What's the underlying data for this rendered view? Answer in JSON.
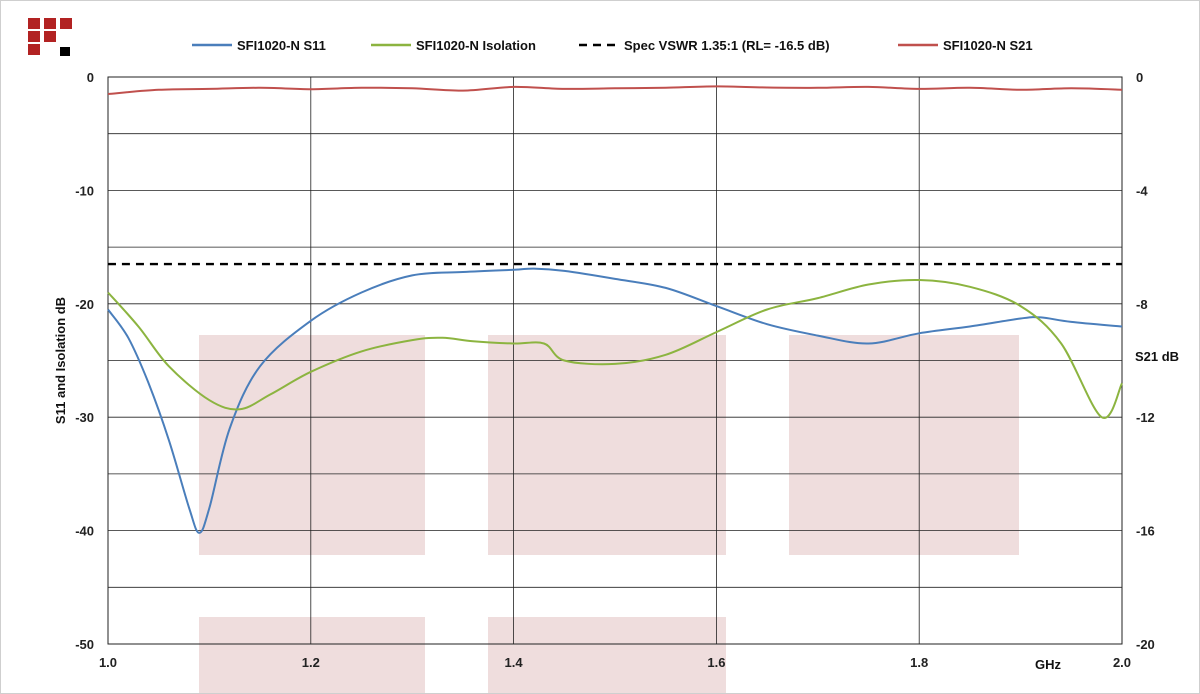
{
  "colors": {
    "s11": "#4a7ebb",
    "isolation": "#8cb440",
    "spec": "#000000",
    "s21": "#c0504d",
    "logo_red": "#b22222",
    "logo_black": "#000000",
    "watermark": "#e8cfcf",
    "grid": "#222222"
  },
  "chart_data": {
    "type": "line",
    "x_unit_label": "GHz",
    "xlim": [
      1.0,
      2.0
    ],
    "x_ticks": [
      "1.0",
      "1.2",
      "1.4",
      "1.6",
      "1.8",
      "2.0"
    ],
    "ylim_left": [
      -50,
      0
    ],
    "y_ticks_left": [
      "0",
      "-10",
      "-20",
      "-30",
      "-40",
      "-50"
    ],
    "ylim_right": [
      -20,
      0
    ],
    "y_ticks_right": [
      "0",
      "-4",
      "-8",
      "-12",
      "-16",
      "-20"
    ],
    "ylabel_left": "S11 and Isolation dB",
    "ylabel_right": "S21 dB",
    "grid": true,
    "legend_position": "top",
    "series": [
      {
        "name": "SFI1020-N S11",
        "axis": "left",
        "style": "solid",
        "x": [
          1.0,
          1.02,
          1.04,
          1.06,
          1.08,
          1.09,
          1.1,
          1.12,
          1.15,
          1.2,
          1.25,
          1.3,
          1.35,
          1.4,
          1.42,
          1.45,
          1.5,
          1.55,
          1.6,
          1.65,
          1.7,
          1.75,
          1.8,
          1.85,
          1.9,
          1.92,
          1.95,
          2.0
        ],
        "values": [
          -20.5,
          -23,
          -27,
          -32,
          -38,
          -40.2,
          -38,
          -31,
          -25.5,
          -21.5,
          -19,
          -17.5,
          -17.2,
          -17.0,
          -16.9,
          -17.1,
          -17.8,
          -18.6,
          -20.2,
          -21.8,
          -22.8,
          -23.5,
          -22.6,
          -22.0,
          -21.3,
          -21.2,
          -21.6,
          -22.0
        ]
      },
      {
        "name": "SFI1020-N Isolation",
        "axis": "left",
        "style": "solid",
        "x": [
          1.0,
          1.03,
          1.06,
          1.1,
          1.13,
          1.16,
          1.2,
          1.25,
          1.3,
          1.33,
          1.36,
          1.4,
          1.43,
          1.45,
          1.5,
          1.55,
          1.6,
          1.65,
          1.7,
          1.75,
          1.8,
          1.85,
          1.9,
          1.94,
          1.98,
          2.0
        ],
        "values": [
          -19.0,
          -22,
          -25.5,
          -28.5,
          -29.3,
          -28,
          -26,
          -24.2,
          -23.2,
          -23.0,
          -23.3,
          -23.5,
          -23.5,
          -25.0,
          -25.3,
          -24.5,
          -22.5,
          -20.5,
          -19.5,
          -18.3,
          -17.9,
          -18.5,
          -20.2,
          -23.5,
          -30.0,
          -27.0
        ]
      },
      {
        "name": "Spec VSWR 1.35:1 (RL= -16.5 dB)",
        "axis": "left",
        "style": "dashed",
        "x": [
          1.0,
          2.0
        ],
        "values": [
          -16.5,
          -16.5
        ]
      },
      {
        "name": "SFI1020-N S21",
        "axis": "right",
        "style": "solid",
        "x": [
          1.0,
          1.05,
          1.1,
          1.15,
          1.2,
          1.25,
          1.3,
          1.35,
          1.4,
          1.45,
          1.5,
          1.55,
          1.6,
          1.65,
          1.7,
          1.75,
          1.8,
          1.85,
          1.9,
          1.95,
          2.0
        ],
        "values": [
          -0.6,
          -0.45,
          -0.42,
          -0.38,
          -0.43,
          -0.38,
          -0.4,
          -0.48,
          -0.35,
          -0.42,
          -0.4,
          -0.38,
          -0.33,
          -0.37,
          -0.38,
          -0.35,
          -0.42,
          -0.38,
          -0.45,
          -0.4,
          -0.45
        ]
      }
    ]
  }
}
